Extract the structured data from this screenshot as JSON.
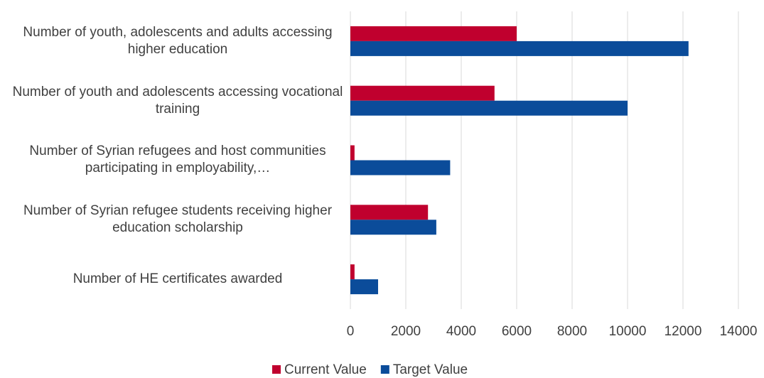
{
  "chart_data": {
    "type": "bar",
    "orientation": "horizontal",
    "categories": [
      "Number of youth, adolescents and adults accessing higher education",
      "Number of youth and adolescents accessing vocational training",
      "Number of Syrian refugees and host communities participating in employability,…",
      "Number of Syrian refugee students receiving higher education scholarship",
      "Number of HE certificates awarded"
    ],
    "series": [
      {
        "name": "Current Value",
        "color": "#c0002e",
        "values": [
          6000,
          5200,
          150,
          2800,
          150
        ]
      },
      {
        "name": "Target Value",
        "color": "#0b4c9a",
        "values": [
          12200,
          10000,
          3600,
          3100,
          1000
        ]
      }
    ],
    "xlim": [
      0,
      14000
    ],
    "xticks": [
      0,
      2000,
      4000,
      6000,
      8000,
      10000,
      12000,
      14000
    ],
    "grid": true,
    "legend": "bottom"
  }
}
